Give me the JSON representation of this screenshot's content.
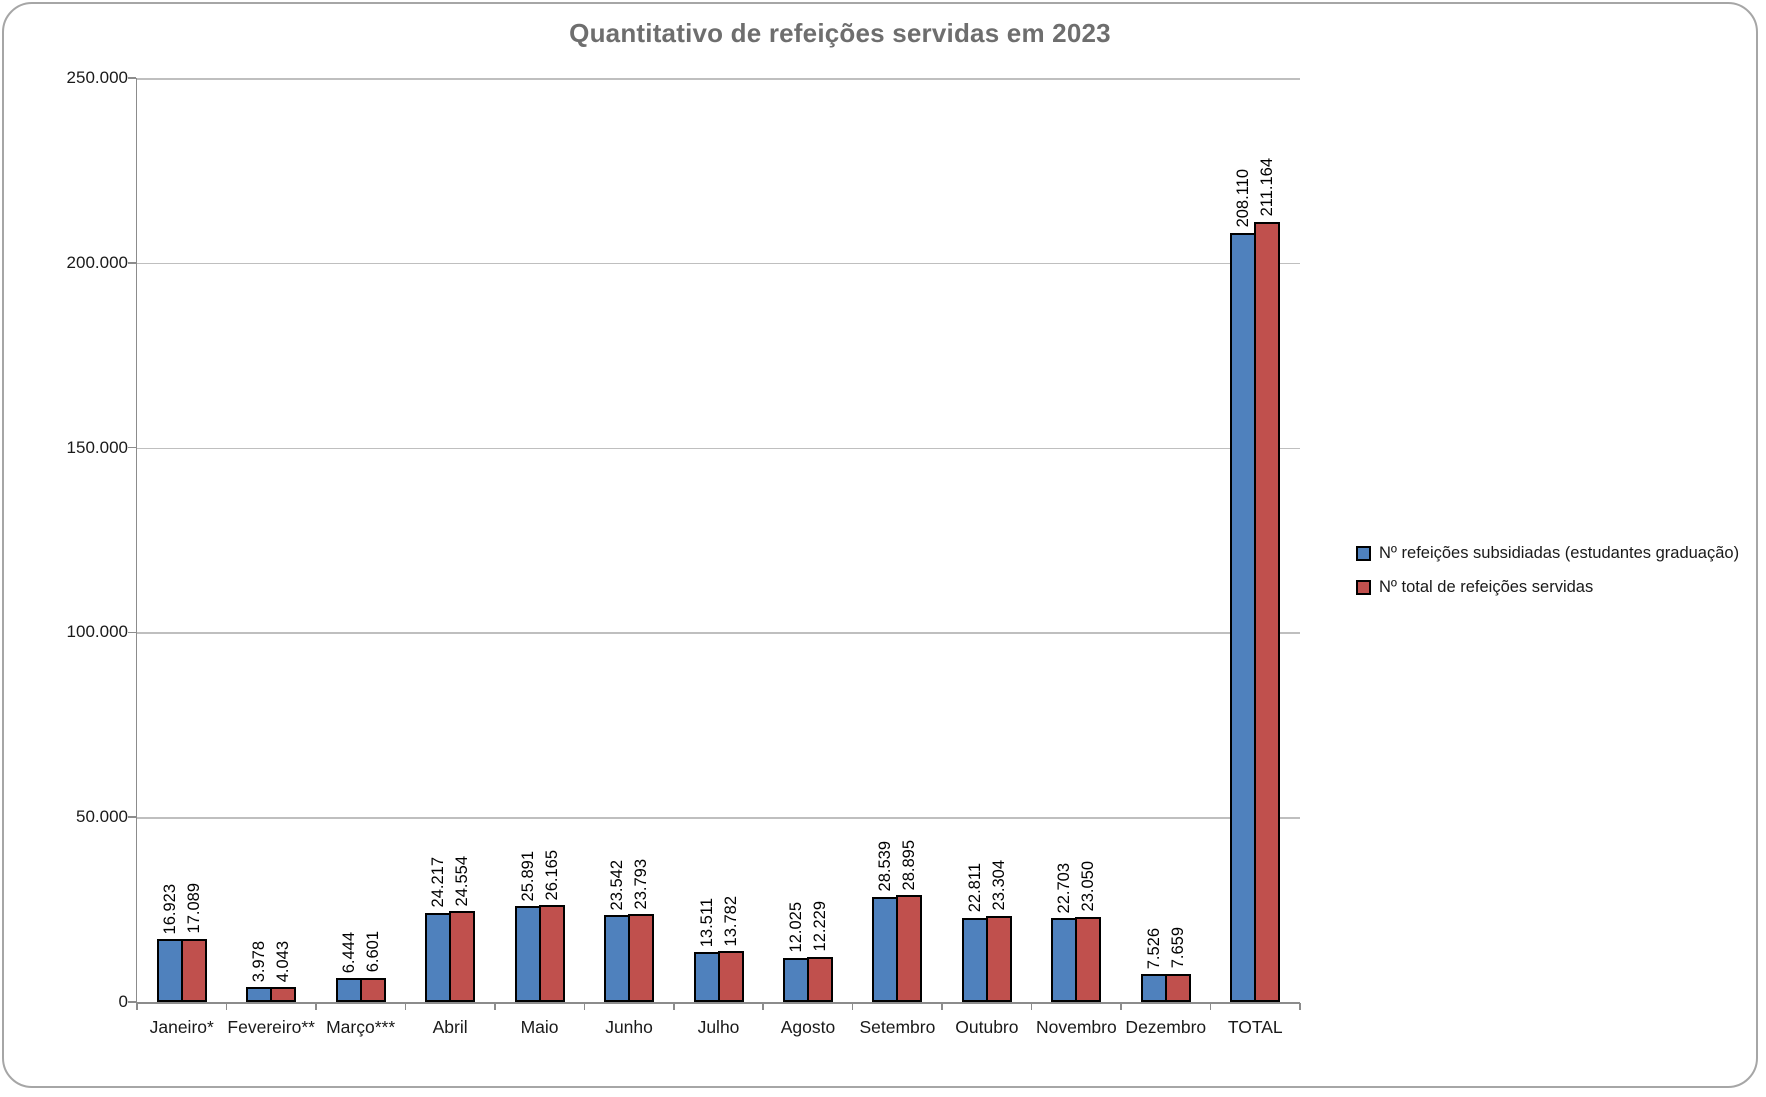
{
  "title": "Quantitativo de refeições servidas em 2023",
  "chart_data": {
    "type": "bar",
    "title": "Quantitativo de refeições servidas em 2023",
    "categories": [
      "Janeiro*",
      "Fevereiro**",
      "Março***",
      "Abril",
      "Maio",
      "Junho",
      "Julho",
      "Agosto",
      "Setembro",
      "Outubro",
      "Novembro",
      "Dezembro",
      "TOTAL"
    ],
    "series": [
      {
        "name": "Nº refeições subsidiadas (estudantes graduação)",
        "color": "#4F81BD",
        "values": [
          16923,
          3978,
          6444,
          24217,
          25891,
          23542,
          13511,
          12025,
          28539,
          22811,
          22703,
          7526,
          208110
        ]
      },
      {
        "name": "Nº total de refeições servidas",
        "color": "#C0504D",
        "values": [
          17089,
          4043,
          6601,
          24554,
          26165,
          23793,
          13782,
          12229,
          28895,
          23304,
          23050,
          7659,
          211164
        ]
      }
    ],
    "data_labels": [
      "16.923",
      "17.089",
      "3.978",
      "4.043",
      "6.444",
      "6.601",
      "24.217",
      "24.554",
      "25.891",
      "26.165",
      "23.542",
      "23.793",
      "13.511",
      "13.782",
      "12.025",
      "12.229",
      "28.539",
      "28.895",
      "22.811",
      "23.304",
      "22.703",
      "23.050",
      "7.526",
      "7.659",
      "208.110",
      "211.164"
    ],
    "data_label_orientation": "vertical-bottom-to-top",
    "xlabel": "",
    "ylabel": "",
    "ylim": [
      0,
      250000
    ],
    "y_tick_values": [
      250000,
      200000,
      150000,
      100000,
      50000,
      0
    ],
    "y_tick_labels": [
      "250.000",
      "200.000",
      "150.000",
      "100.000",
      "50.000",
      "0"
    ],
    "grid": true,
    "bar_border_color": "#000000",
    "legend_position": "right",
    "title_color": "#6E6E6E"
  }
}
